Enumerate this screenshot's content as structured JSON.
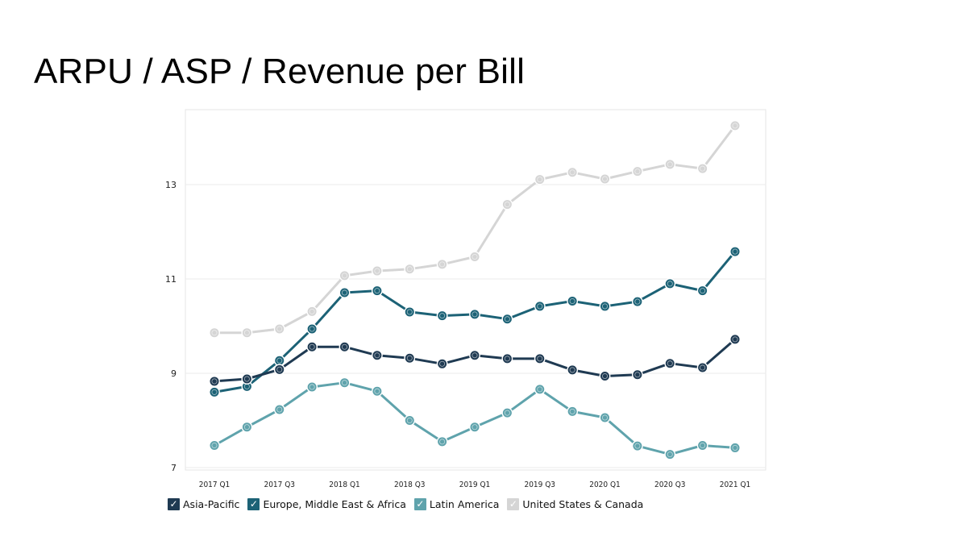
{
  "slide": {
    "title": "ARPU / ASP / Revenue per Bill"
  },
  "chart_data": {
    "type": "line",
    "title": "ARPU / ASP / Revenue per Bill",
    "xlabel": "",
    "ylabel": "",
    "x": [
      "2017 Q1",
      "2017 Q2",
      "2017 Q3",
      "2017 Q4",
      "2018 Q1",
      "2018 Q2",
      "2018 Q3",
      "2018 Q4",
      "2019 Q1",
      "2019 Q2",
      "2019 Q3",
      "2019 Q4",
      "2020 Q1",
      "2020 Q2",
      "2020 Q3",
      "2020 Q4",
      "2021 Q1"
    ],
    "x_tick_labels": [
      "2017 Q1",
      "",
      "2017 Q3",
      "",
      "2018 Q1",
      "",
      "2018 Q3",
      "",
      "2019 Q1",
      "",
      "2019 Q3",
      "",
      "2020 Q1",
      "",
      "2020 Q3",
      "",
      "2021 Q1"
    ],
    "y_ticks": [
      "7",
      "9",
      "11",
      "13"
    ],
    "ylim": [
      6.98,
      14.55
    ],
    "grid": true,
    "legend_position": "bottom-left",
    "check_mark": "✓",
    "series": [
      {
        "name": "United States & Canada",
        "color": "#d5d5d5",
        "values": [
          9.86,
          9.86,
          9.94,
          10.31,
          11.07,
          11.17,
          11.21,
          11.31,
          11.47,
          12.58,
          13.11,
          13.26,
          13.12,
          13.28,
          13.43,
          13.34,
          14.25
        ]
      },
      {
        "name": "Europe, Middle East & Africa",
        "color": "#1c6276",
        "values": [
          8.6,
          8.72,
          9.27,
          9.94,
          10.71,
          10.75,
          10.3,
          10.22,
          10.25,
          10.15,
          10.42,
          10.53,
          10.42,
          10.52,
          10.9,
          10.75,
          11.58
        ]
      },
      {
        "name": "Asia-Pacific",
        "color": "#1f3a52",
        "values": [
          8.83,
          8.88,
          9.08,
          9.56,
          9.56,
          9.38,
          9.32,
          9.2,
          9.38,
          9.31,
          9.31,
          9.07,
          8.94,
          8.97,
          9.21,
          9.12,
          9.72
        ]
      },
      {
        "name": "Latin America",
        "color": "#5fa3ac",
        "values": [
          7.47,
          7.86,
          8.23,
          8.71,
          8.8,
          8.62,
          8.0,
          7.55,
          7.86,
          8.16,
          8.66,
          8.19,
          8.06,
          7.46,
          7.28,
          7.47,
          7.42
        ]
      }
    ],
    "legend_order": [
      "Asia-Pacific",
      "Europe, Middle East & Africa",
      "Latin America",
      "United States & Canada"
    ]
  }
}
